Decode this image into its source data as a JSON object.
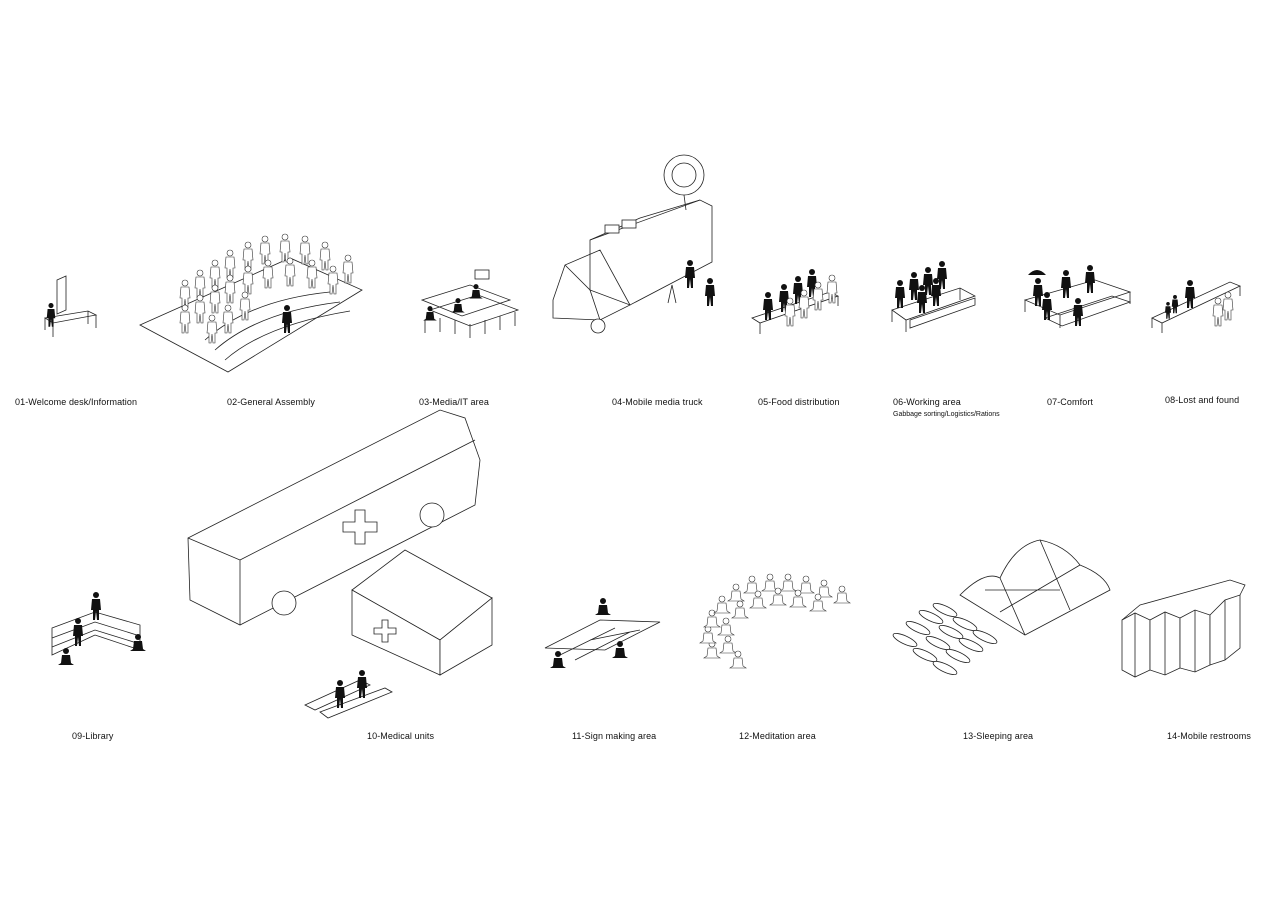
{
  "areas": [
    {
      "label": "01-Welcome desk/Information",
      "icon": "welcome-desk-illustration"
    },
    {
      "label": "02-General Assembly",
      "icon": "general-assembly-illustration"
    },
    {
      "label": "03-Media/IT area",
      "icon": "media-it-illustration"
    },
    {
      "label": "04-Mobile media truck",
      "icon": "media-truck-illustration"
    },
    {
      "label": "05-Food distribution",
      "icon": "food-distribution-illustration"
    },
    {
      "label": "06-Working area",
      "sublabel": "Gabbage sorting/Logistics/Rations",
      "icon": "working-area-illustration"
    },
    {
      "label": "07-Comfort",
      "icon": "comfort-illustration"
    },
    {
      "label": "08-Lost and found",
      "icon": "lost-found-illustration"
    },
    {
      "label": "09-Library",
      "icon": "library-illustration"
    },
    {
      "label": "10-Medical units",
      "icon": "medical-units-illustration"
    },
    {
      "label": "11-Sign making area",
      "icon": "sign-making-illustration"
    },
    {
      "label": "12-Meditation area",
      "icon": "meditation-illustration"
    },
    {
      "label": "13-Sleeping area",
      "icon": "sleeping-area-illustration"
    },
    {
      "label": "14-Mobile restrooms",
      "icon": "restrooms-illustration"
    }
  ]
}
